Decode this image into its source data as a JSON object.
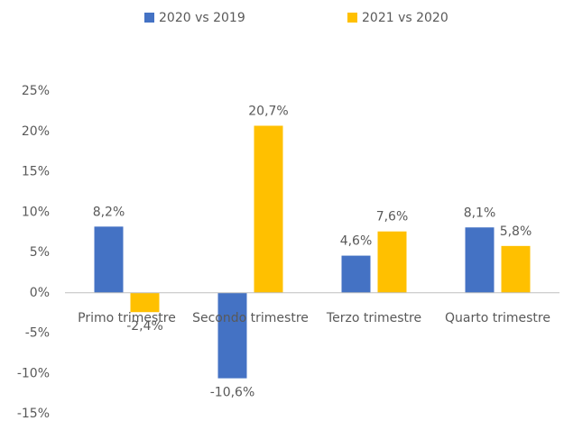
{
  "chart_data": {
    "type": "bar",
    "categories": [
      "Primo trimestre",
      "Secondo trimestre",
      "Terzo trimestre",
      "Quarto trimestre"
    ],
    "series": [
      {
        "name": "2020 vs 2019",
        "color": "#4472c4",
        "values": [
          8.2,
          -10.6,
          4.6,
          8.1
        ],
        "value_labels": [
          "8,2%",
          "-10,6%",
          "4,6%",
          "8,1%"
        ]
      },
      {
        "name": "2021 vs 2020",
        "color": "#ffc000",
        "values": [
          -2.4,
          20.7,
          7.6,
          5.8
        ],
        "value_labels": [
          "-2,4%",
          "20,7%",
          "7,6%",
          "5,8%"
        ]
      }
    ],
    "ylim": [
      -15,
      25
    ],
    "yticks": [
      {
        "value": -15,
        "label": "-15%"
      },
      {
        "value": -10,
        "label": "-10%"
      },
      {
        "value": -5,
        "label": "-5%"
      },
      {
        "value": 0,
        "label": "0%"
      },
      {
        "value": 5,
        "label": "5%"
      },
      {
        "value": 10,
        "label": "10%"
      },
      {
        "value": 15,
        "label": "15%"
      },
      {
        "value": 20,
        "label": "20%"
      },
      {
        "value": 25,
        "label": "25%"
      }
    ],
    "grid": false,
    "legend": "top"
  }
}
